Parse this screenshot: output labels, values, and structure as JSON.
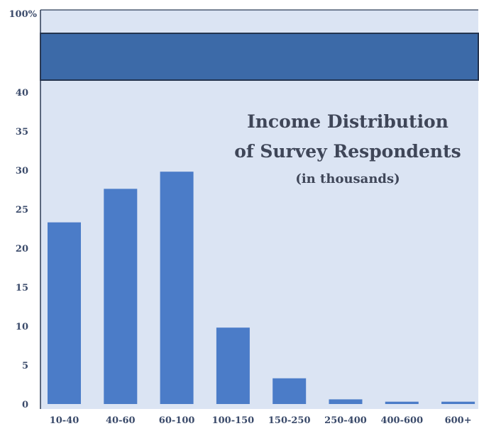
{
  "chart_data": {
    "type": "bar",
    "title": "Income Distribution",
    "title_line2": "of Survey Respondents",
    "subtitle": "(in thousands)",
    "xlabel": "",
    "ylabel": "",
    "categories": [
      "10-40",
      "40-60",
      "60-100",
      "100-150",
      "150-250",
      "250-400",
      "400-600",
      "600+"
    ],
    "values": [
      23.3,
      27.6,
      29.8,
      9.8,
      3.3,
      0.6,
      0.3,
      0.3
    ],
    "ylim": [
      0,
      40
    ],
    "yticks": [
      "0",
      "5",
      "10",
      "15",
      "20",
      "25",
      "30",
      "35",
      "40"
    ],
    "top_tick": "100%",
    "grid": false,
    "colors": {
      "bar": "#4b7cc8",
      "band": "#3c6aa8",
      "plot_bg": "#dbe4f3",
      "page_bg": "#ffffff",
      "axis": "#2b3a55"
    }
  }
}
